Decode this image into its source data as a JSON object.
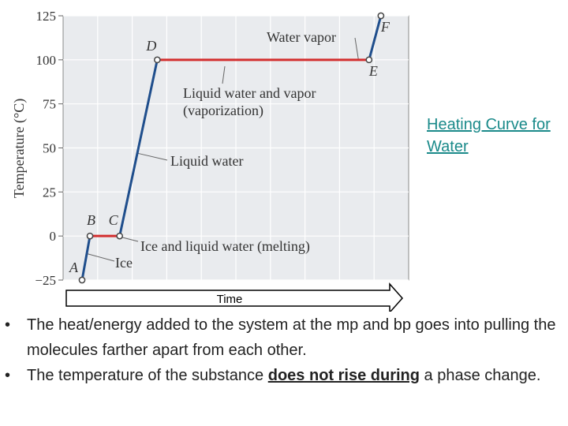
{
  "chart_data": {
    "type": "line",
    "title": "",
    "ylabel": "Temperature (°C)",
    "xlabel": "Time",
    "ylim": [
      -25,
      125
    ],
    "yticks": [
      -25,
      0,
      25,
      50,
      75,
      100,
      125
    ],
    "grid": true,
    "x_unit": "arbitrary time units (no numeric scale shown)",
    "points": [
      {
        "label": "A",
        "t": 0,
        "temp": -25
      },
      {
        "label": "B",
        "t": 0.4,
        "temp": 0
      },
      {
        "label": "C",
        "t": 1.9,
        "temp": 0
      },
      {
        "label": "D",
        "t": 3.8,
        "temp": 100
      },
      {
        "label": "E",
        "t": 14.5,
        "temp": 100
      },
      {
        "label": "F",
        "t": 15.1,
        "temp": 125
      }
    ],
    "segments": [
      {
        "from": "A",
        "to": "B",
        "phase": "heating",
        "color": "#1f4e8c"
      },
      {
        "from": "B",
        "to": "C",
        "phase": "phase-change",
        "color": "#d32f2f"
      },
      {
        "from": "C",
        "to": "D",
        "phase": "heating",
        "color": "#1f4e8c"
      },
      {
        "from": "D",
        "to": "E",
        "phase": "phase-change",
        "color": "#d32f2f"
      },
      {
        "from": "E",
        "to": "F",
        "phase": "heating",
        "color": "#1f4e8c"
      }
    ],
    "annotations": [
      "Water vapor",
      "Liquid water and vapor",
      "(vaporization)",
      "Liquid water",
      "Ice and liquid water (melting)",
      "Ice"
    ]
  },
  "side_title": "Heating Curve for Water",
  "bullets": [
    {
      "text": "The heat/energy added to the system at the mp and bp goes into pulling the molecules farther apart from each other."
    },
    {
      "before": "The temperature of the substance ",
      "emph": "does not rise during",
      "after": " a phase change."
    }
  ]
}
